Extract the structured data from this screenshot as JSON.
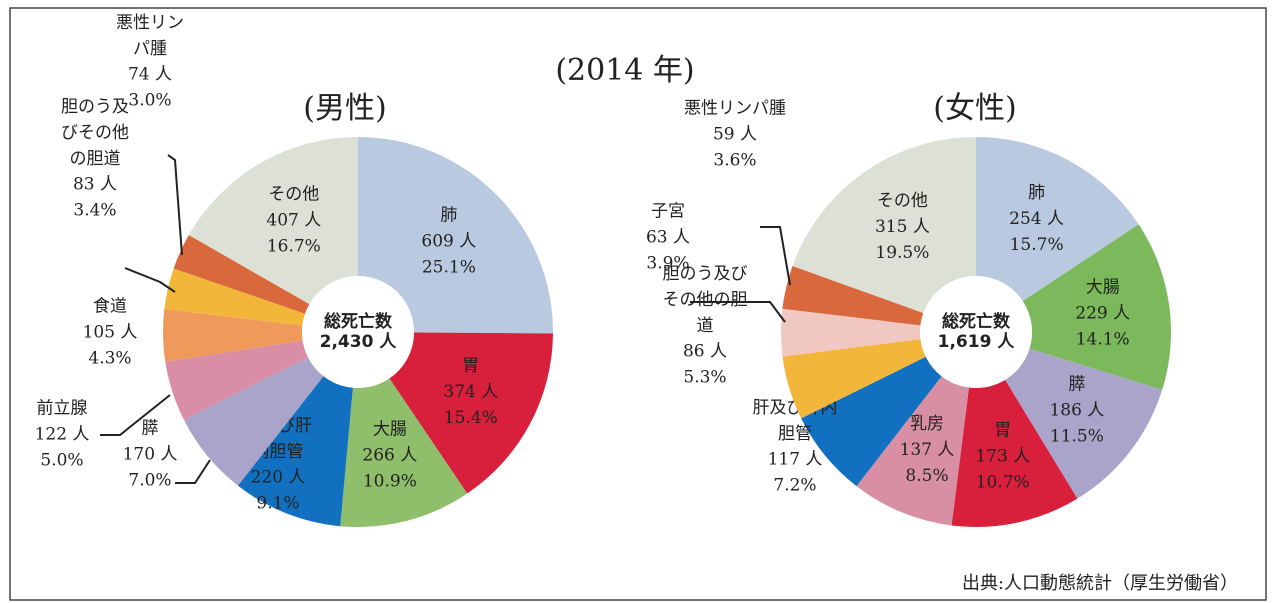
{
  "title": "(2014 年)",
  "source": "出典:人口動態統計（厚生労働省）",
  "chart_data": [
    {
      "type": "pie",
      "donut": true,
      "title": "(男性)",
      "center_label": "総死亡数",
      "total_label": "2,430 人",
      "categories": [
        "肺",
        "胃",
        "大腸",
        "肝及び肝内胆管",
        "膵",
        "前立腺",
        "食道",
        "胆のう及びその他の胆道",
        "悪性リンパ腫",
        "その他"
      ],
      "values": [
        25.1,
        15.4,
        10.9,
        9.1,
        7.0,
        5.0,
        4.3,
        3.4,
        3.0,
        16.7
      ],
      "value_labels": [
        "25.1%",
        "15.4%",
        "10.9%",
        "9.1%",
        "7.0%",
        "5.0%",
        "4.3%",
        "3.4%",
        "3.0%",
        "16.7%"
      ],
      "count_labels": [
        "609 人",
        "374 人",
        "266 人",
        "220 人",
        "170 人",
        "122 人",
        "105 人",
        "83 人",
        "74 人",
        "407 人"
      ],
      "colors": [
        "#b9c9e0",
        "#d81f3c",
        "#8fbf6a",
        "#1170c0",
        "#aaa4ca",
        "#d98ea6",
        "#ef9a5b",
        "#f2b73a",
        "#d9683c",
        "#dde0d5"
      ]
    },
    {
      "type": "pie",
      "donut": true,
      "title": "(女性)",
      "center_label": "総死亡数",
      "total_label": "1,619 人",
      "categories": [
        "肺",
        "大腸",
        "膵",
        "胃",
        "乳房",
        "肝及び肝内胆管",
        "胆のう及びその他の胆道",
        "子宮",
        "悪性リンパ腫",
        "その他"
      ],
      "values": [
        15.7,
        14.1,
        11.5,
        10.7,
        8.5,
        7.2,
        5.3,
        3.9,
        3.6,
        19.5
      ],
      "value_labels": [
        "15.7%",
        "14.1%",
        "11.5%",
        "10.7%",
        "8.5%",
        "7.2%",
        "5.3%",
        "3.9%",
        "3.6%",
        "19.5%"
      ],
      "count_labels": [
        "254 人",
        "229 人",
        "186 人",
        "173 人",
        "137 人",
        "117 人",
        "86 人",
        "63 人",
        "59 人",
        "315 人"
      ],
      "colors": [
        "#b9c9e0",
        "#7cb95c",
        "#aaa4ca",
        "#d81f3c",
        "#d88ea3",
        "#1170c0",
        "#f2b73a",
        "#f1c7c2",
        "#d9683c",
        "#dde0d5"
      ]
    }
  ]
}
